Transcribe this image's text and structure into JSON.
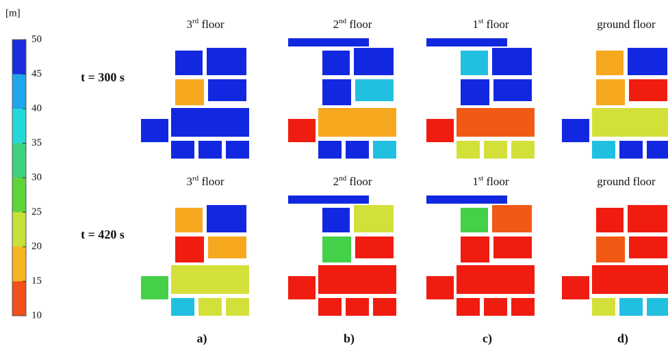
{
  "colorbar": {
    "unit": "[m]",
    "ticks": [
      "50",
      "45",
      "40",
      "35",
      "30",
      "25",
      "20",
      "15",
      "10"
    ]
  },
  "rows": [
    {
      "label": "t = 300 s",
      "titles": [
        {
          "main": "3",
          "sup": "rd",
          "rest": " floor"
        },
        {
          "main": "2",
          "sup": "nd",
          "rest": " floor"
        },
        {
          "main": "1",
          "sup": "st",
          "rest": " floor"
        },
        {
          "main": "ground floor"
        }
      ]
    },
    {
      "label": "t = 420 s",
      "titles": [
        {
          "main": "3",
          "sup": "rd",
          "rest": " floor"
        },
        {
          "main": "2",
          "sup": "nd",
          "rest": " floor"
        },
        {
          "main": "1",
          "sup": "st",
          "rest": " floor"
        },
        {
          "main": "ground floor"
        }
      ]
    }
  ],
  "panels": [
    "a)",
    "b)",
    "c)",
    "d)"
  ]
}
